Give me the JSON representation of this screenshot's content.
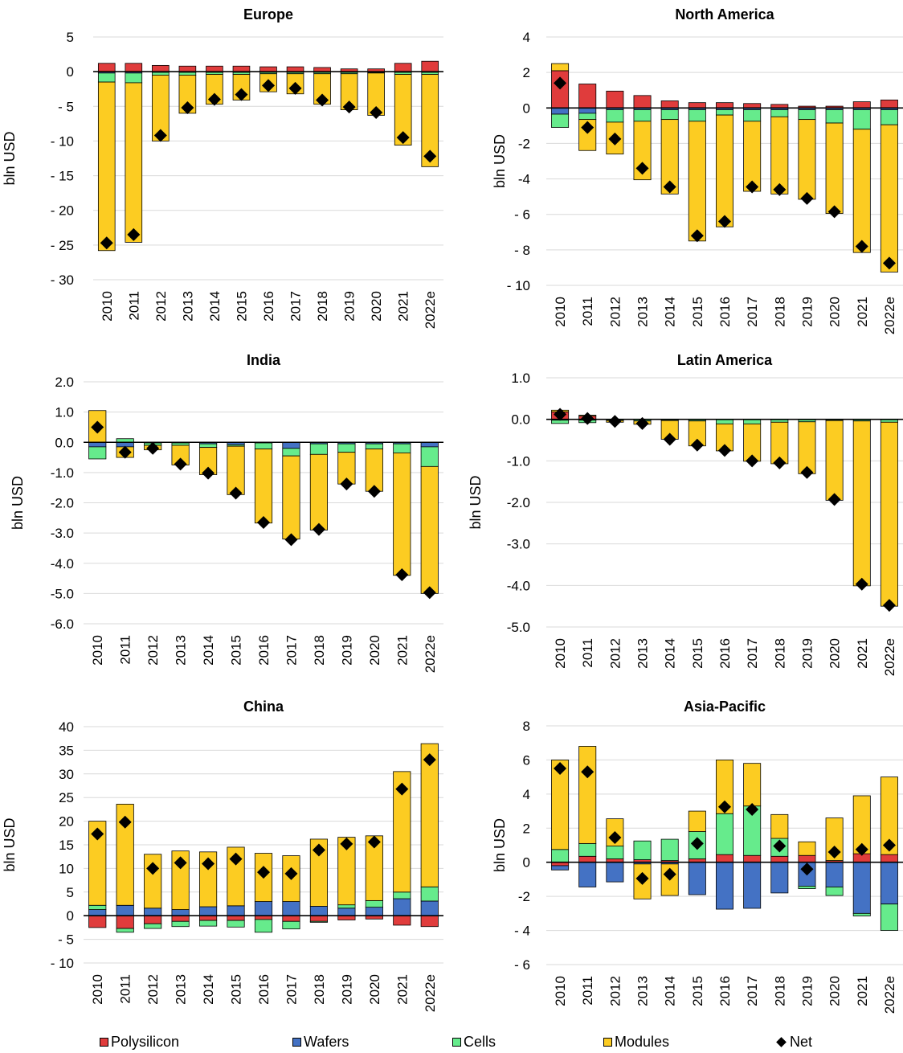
{
  "chart_data": [
    {
      "type": "bar",
      "title": "Europe",
      "ylabel": "bln USD",
      "ylim": [
        -30,
        5
      ],
      "yticks": [
        5,
        0,
        -5,
        -10,
        -15,
        -20,
        -25,
        -30
      ],
      "ytick_labels": [
        "5",
        "0",
        "- 5",
        "- 10",
        "- 15",
        "- 20",
        "- 25",
        "- 30"
      ],
      "categories": [
        "2010",
        "2011",
        "2012",
        "2013",
        "2014",
        "2015",
        "2016",
        "2017",
        "2018",
        "2019",
        "2020",
        "2021",
        "2022e"
      ],
      "series": [
        {
          "name": "Polysilicon",
          "values": [
            1.2,
            1.2,
            0.9,
            0.8,
            0.8,
            0.8,
            0.7,
            0.7,
            0.6,
            0.4,
            0.4,
            1.2,
            1.5
          ]
        },
        {
          "name": "Wafers",
          "values": [
            -0.2,
            -0.2,
            -0.1,
            -0.1,
            -0.1,
            -0.1,
            -0.1,
            -0.1,
            -0.1,
            -0.1,
            -0.1,
            -0.1,
            -0.1
          ]
        },
        {
          "name": "Cells",
          "values": [
            -1.3,
            -1.4,
            -0.4,
            -0.4,
            -0.3,
            -0.3,
            -0.2,
            -0.2,
            -0.2,
            -0.2,
            -0.1,
            -0.3,
            -0.3
          ]
        },
        {
          "name": "Modules",
          "values": [
            -24.3,
            -23.0,
            -9.5,
            -5.5,
            -4.3,
            -3.7,
            -2.6,
            -2.9,
            -4.4,
            -5.2,
            -6.1,
            -10.2,
            -13.3
          ]
        },
        {
          "name": "Net",
          "values": [
            -24.7,
            -23.5,
            -9.2,
            -5.2,
            -4.0,
            -3.3,
            -2.0,
            -2.4,
            -4.1,
            -5.1,
            -5.9,
            -9.5,
            -12.2
          ]
        }
      ]
    },
    {
      "type": "bar",
      "title": "North America",
      "ylabel": "bln USD",
      "ylim": [
        -10,
        4
      ],
      "yticks": [
        4,
        2,
        0,
        -2,
        -4,
        -6,
        -8,
        -10
      ],
      "ytick_labels": [
        "4",
        "2",
        "0",
        "-2",
        "-4",
        "- 6",
        "- 8",
        "- 10"
      ],
      "categories": [
        "2010",
        "2011",
        "2012",
        "2013",
        "2014",
        "2015",
        "2016",
        "2017",
        "2018",
        "2019",
        "2020",
        "2021",
        "2022e"
      ],
      "series": [
        {
          "name": "Polysilicon",
          "values": [
            2.1,
            1.35,
            0.95,
            0.7,
            0.4,
            0.3,
            0.3,
            0.25,
            0.2,
            0.1,
            0.1,
            0.35,
            0.45
          ]
        },
        {
          "name": "Wafers",
          "values": [
            -0.35,
            -0.3,
            -0.1,
            -0.1,
            -0.1,
            -0.1,
            -0.1,
            -0.1,
            -0.1,
            -0.1,
            -0.1,
            -0.1,
            -0.1
          ]
        },
        {
          "name": "Cells",
          "values": [
            -0.75,
            -0.35,
            -0.7,
            -0.65,
            -0.55,
            -0.65,
            -0.3,
            -0.65,
            -0.4,
            -0.55,
            -0.75,
            -1.1,
            -0.85
          ]
        },
        {
          "name": "Modules",
          "values": [
            0.4,
            -1.75,
            -1.8,
            -3.3,
            -4.2,
            -6.75,
            -6.3,
            -3.95,
            -4.35,
            -4.5,
            -5.1,
            -6.95,
            -8.3
          ]
        },
        {
          "name": "Net",
          "values": [
            1.4,
            -1.1,
            -1.75,
            -3.4,
            -4.45,
            -7.2,
            -6.4,
            -4.45,
            -4.6,
            -5.1,
            -5.85,
            -7.8,
            -8.75
          ]
        }
      ]
    },
    {
      "type": "bar",
      "title": "India",
      "ylabel": "bln USD",
      "ylim": [
        -6,
        2
      ],
      "yticks": [
        2,
        1,
        0,
        -1,
        -2,
        -3,
        -4,
        -5,
        -6
      ],
      "ytick_labels": [
        "2.0",
        "1.0",
        "0.0",
        "-1.0",
        "-2.0",
        "-3.0",
        "-4.0",
        "-5.0",
        "-6.0"
      ],
      "categories": [
        "2010",
        "2011",
        "2012",
        "2013",
        "2014",
        "2015",
        "2016",
        "2017",
        "2018",
        "2019",
        "2020",
        "2021",
        "2022e"
      ],
      "series": [
        {
          "name": "Polysilicon",
          "values": [
            0,
            0,
            0,
            0,
            0,
            0,
            0,
            0,
            0,
            0,
            0,
            0,
            0
          ]
        },
        {
          "name": "Wafers",
          "values": [
            -0.15,
            -0.15,
            -0.02,
            -0.02,
            -0.05,
            -0.08,
            -0.02,
            -0.2,
            -0.05,
            -0.05,
            -0.05,
            -0.05,
            -0.15
          ]
        },
        {
          "name": "Cells",
          "values": [
            -0.4,
            0.12,
            -0.08,
            -0.08,
            -0.12,
            -0.05,
            -0.2,
            -0.25,
            -0.35,
            -0.28,
            -0.17,
            -0.3,
            -0.65
          ]
        },
        {
          "name": "Modules",
          "values": [
            1.05,
            -0.35,
            -0.15,
            -0.65,
            -0.9,
            -1.6,
            -2.45,
            -2.75,
            -2.5,
            -1.05,
            -1.4,
            -4.05,
            -4.2
          ]
        },
        {
          "name": "Net",
          "values": [
            0.5,
            -0.33,
            -0.2,
            -0.72,
            -1.02,
            -1.68,
            -2.65,
            -3.22,
            -2.88,
            -1.38,
            -1.62,
            -4.38,
            -4.97
          ]
        }
      ]
    },
    {
      "type": "bar",
      "title": "Latin America",
      "ylabel": "bln USD",
      "ylim": [
        -5,
        1
      ],
      "yticks": [
        1,
        0,
        -1,
        -2,
        -3,
        -4,
        -5
      ],
      "ytick_labels": [
        "1.0",
        "0.0",
        "-1.0",
        "-2.0",
        "-3.0",
        "-4.0",
        "-5.0"
      ],
      "categories": [
        "2010",
        "2011",
        "2012",
        "2013",
        "2014",
        "2015",
        "2016",
        "2017",
        "2018",
        "2019",
        "2020",
        "2021",
        "2022e"
      ],
      "series": [
        {
          "name": "Polysilicon",
          "values": [
            0.18,
            0.08,
            0,
            0,
            0,
            0,
            0,
            0,
            0,
            0,
            0,
            0,
            0
          ]
        },
        {
          "name": "Wafers",
          "values": [
            -0.02,
            -0.02,
            -0.01,
            -0.01,
            -0.01,
            -0.01,
            -0.01,
            -0.01,
            -0.01,
            -0.01,
            -0.01,
            -0.01,
            -0.01
          ]
        },
        {
          "name": "Cells",
          "values": [
            -0.08,
            -0.06,
            -0.02,
            -0.03,
            -0.02,
            -0.03,
            -0.1,
            -0.1,
            -0.06,
            -0.05,
            -0.02,
            -0.03,
            -0.06
          ]
        },
        {
          "name": "Modules",
          "values": [
            0.04,
            0.02,
            -0.04,
            -0.08,
            -0.45,
            -0.6,
            -0.65,
            -0.9,
            -1.0,
            -1.25,
            -1.92,
            -3.97,
            -4.43
          ]
        },
        {
          "name": "Net",
          "values": [
            0.12,
            0.02,
            -0.05,
            -0.1,
            -0.48,
            -0.62,
            -0.75,
            -1.0,
            -1.05,
            -1.28,
            -1.93,
            -3.97,
            -4.48
          ]
        }
      ]
    },
    {
      "type": "bar",
      "title": "China",
      "ylabel": "bln USD",
      "ylim": [
        -10,
        40
      ],
      "yticks": [
        40,
        35,
        30,
        25,
        20,
        15,
        10,
        5,
        0,
        -5,
        -10
      ],
      "ytick_labels": [
        "40",
        "35",
        "30",
        "25",
        "20",
        "15",
        "10",
        "5",
        "0",
        "- 5",
        "- 10"
      ],
      "categories": [
        "2010",
        "2011",
        "2012",
        "2013",
        "2014",
        "2015",
        "2016",
        "2017",
        "2018",
        "2019",
        "2020",
        "2021",
        "2022e"
      ],
      "series": [
        {
          "name": "Polysilicon",
          "values": [
            -2.5,
            -2.7,
            -1.7,
            -1.2,
            -1.0,
            -1.0,
            -0.8,
            -1.2,
            -1.2,
            -0.9,
            -0.7,
            -2.0,
            -2.3
          ]
        },
        {
          "name": "Wafers",
          "values": [
            1.3,
            2.2,
            1.6,
            1.3,
            1.9,
            2.1,
            3.0,
            3.0,
            2.0,
            1.6,
            1.8,
            3.6,
            3.1
          ]
        },
        {
          "name": "Cells",
          "values": [
            0.9,
            -0.8,
            -1.0,
            -1.1,
            -1.2,
            -1.4,
            -2.7,
            -1.6,
            -0.2,
            0.7,
            1.4,
            1.4,
            3.0
          ]
        },
        {
          "name": "Modules",
          "values": [
            17.8,
            21.4,
            11.4,
            12.4,
            11.6,
            12.4,
            10.2,
            9.7,
            14.2,
            14.3,
            13.7,
            25.5,
            30.3
          ]
        },
        {
          "name": "Net",
          "values": [
            17.3,
            19.8,
            10.0,
            11.2,
            11.0,
            12.0,
            9.2,
            8.9,
            13.9,
            15.2,
            15.6,
            26.8,
            33.0
          ]
        }
      ]
    },
    {
      "type": "bar",
      "title": "Asia-Pacific",
      "ylabel": "bln USD",
      "ylim": [
        -6,
        8
      ],
      "yticks": [
        8,
        6,
        4,
        2,
        0,
        -2,
        -4,
        -6
      ],
      "ytick_labels": [
        "8",
        "6",
        "4",
        "2",
        "0",
        "-2",
        "- 4",
        "- 6"
      ],
      "categories": [
        "2010",
        "2011",
        "2012",
        "2013",
        "2014",
        "2015",
        "2016",
        "2017",
        "2018",
        "2019",
        "2020",
        "2021",
        "2022e"
      ],
      "series": [
        {
          "name": "Polysilicon",
          "values": [
            -0.2,
            0.35,
            0.2,
            0.15,
            0.1,
            0.2,
            0.45,
            0.4,
            0.35,
            0.4,
            0.1,
            0.5,
            0.45
          ]
        },
        {
          "name": "Wafers",
          "values": [
            -0.25,
            -1.45,
            -1.15,
            -0.1,
            -0.1,
            -1.9,
            -2.75,
            -2.7,
            -1.8,
            -1.4,
            -1.45,
            -3.0,
            -2.45
          ]
        },
        {
          "name": "Cells",
          "values": [
            0.75,
            0.75,
            0.75,
            1.1,
            1.25,
            1.6,
            2.4,
            2.9,
            1.05,
            -0.15,
            -0.5,
            -0.15,
            -1.55
          ]
        },
        {
          "name": "Modules",
          "values": [
            5.25,
            5.7,
            1.6,
            -2.05,
            -1.85,
            1.2,
            3.15,
            2.5,
            1.4,
            0.8,
            2.5,
            3.4,
            4.55
          ]
        },
        {
          "name": "Net",
          "values": [
            5.5,
            5.3,
            1.45,
            -0.95,
            -0.7,
            1.1,
            3.25,
            3.1,
            0.95,
            -0.4,
            0.6,
            0.75,
            1.0
          ]
        }
      ]
    }
  ],
  "legend": {
    "items": [
      {
        "name": "Polysilicon",
        "color": "#E03C3C",
        "marker": "square"
      },
      {
        "name": "Wafers",
        "color": "#4472C4",
        "marker": "square"
      },
      {
        "name": "Cells",
        "color": "#66EB8C",
        "marker": "square"
      },
      {
        "name": "Modules",
        "color": "#FCCC22",
        "marker": "square"
      },
      {
        "name": "Net",
        "color": "#000000",
        "marker": "diamond"
      }
    ]
  }
}
